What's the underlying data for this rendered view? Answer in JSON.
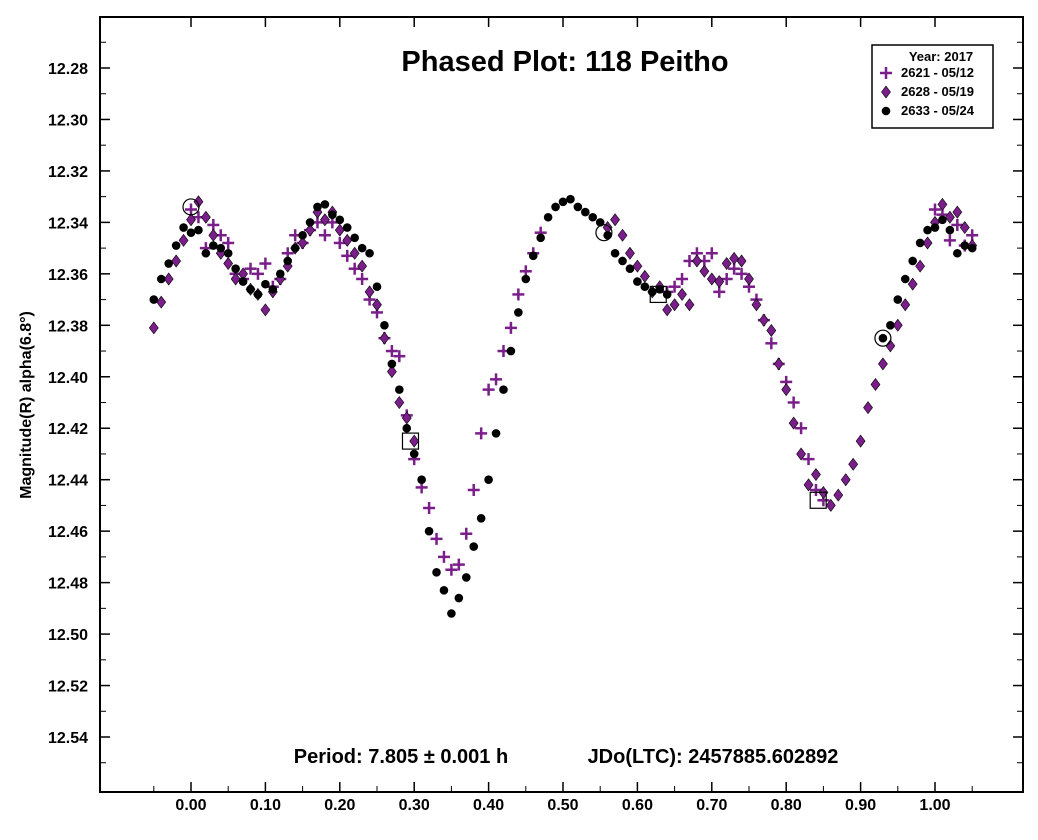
{
  "chart_data": {
    "type": "scatter",
    "title": "Phased Plot: 118 Peitho",
    "xlabel": "",
    "ylabel": "Magnitude(R) alpha(6.8°)",
    "xlim": [
      -0.12,
      1.12
    ],
    "ylim": [
      12.56,
      12.265
    ],
    "y_inverted": true,
    "grid": false,
    "xticks": [
      "0.00",
      "0.10",
      "0.20",
      "0.30",
      "0.40",
      "0.50",
      "0.60",
      "0.70",
      "0.80",
      "0.90",
      "1.00"
    ],
    "yticks": [
      "12.28",
      "12.30",
      "12.32",
      "12.34",
      "12.36",
      "12.38",
      "12.40",
      "12.42",
      "12.44",
      "12.46",
      "12.48",
      "12.50",
      "12.52",
      "12.54"
    ],
    "legend": {
      "title": "Year: 2017",
      "placement": "top-right",
      "entries": [
        "2621 - 05/12",
        "2628 - 05/19",
        "2633 - 05/24"
      ]
    },
    "annotation_left": "Period: 7.805 ± 0.001 h",
    "annotation_right": "JDo(LTC): 2457885.602892",
    "series": [
      {
        "name": "2621 - 05/12",
        "marker": "plus",
        "color": "#7a1e8a",
        "x": [
          0.0,
          0.01,
          0.02,
          0.03,
          0.04,
          0.05,
          0.06,
          0.07,
          0.08,
          0.09,
          0.1,
          0.11,
          0.12,
          0.13,
          0.14,
          0.15,
          0.16,
          0.17,
          0.18,
          0.19,
          0.2,
          0.21,
          0.22,
          0.23,
          0.24,
          0.25,
          0.26,
          0.27,
          0.28,
          0.29,
          0.3,
          0.31,
          0.32,
          0.33,
          0.34,
          0.35,
          0.36,
          0.37,
          0.38,
          0.39,
          0.4,
          0.41,
          0.42,
          0.43,
          0.44,
          0.45,
          0.46,
          0.47,
          0.64,
          0.65,
          0.66,
          0.67,
          0.68,
          0.69,
          0.7,
          0.71,
          0.72,
          0.73,
          0.74,
          0.75,
          0.76,
          0.77,
          0.78,
          0.79,
          0.8,
          0.81,
          0.82,
          0.83,
          0.84,
          0.85,
          1.0,
          1.01,
          1.02,
          1.03,
          1.04,
          1.05
        ],
        "y": [
          12.335,
          12.338,
          12.35,
          12.341,
          12.345,
          12.348,
          12.36,
          12.362,
          12.358,
          12.36,
          12.356,
          12.365,
          12.362,
          12.352,
          12.345,
          12.348,
          12.343,
          12.34,
          12.345,
          12.34,
          12.348,
          12.353,
          12.358,
          12.362,
          12.37,
          12.375,
          12.385,
          12.39,
          12.392,
          12.415,
          12.432,
          12.443,
          12.451,
          12.463,
          12.47,
          12.475,
          12.473,
          12.461,
          12.444,
          12.422,
          12.405,
          12.401,
          12.39,
          12.381,
          12.368,
          12.359,
          12.352,
          12.344,
          12.367,
          12.365,
          12.362,
          12.355,
          12.352,
          12.355,
          12.352,
          12.367,
          12.362,
          12.358,
          12.36,
          12.365,
          12.37,
          12.378,
          12.387,
          12.395,
          12.402,
          12.41,
          12.42,
          12.432,
          12.444,
          12.448,
          12.335,
          12.337,
          12.347,
          12.341,
          12.349,
          12.345
        ]
      },
      {
        "name": "2628 - 05/19",
        "marker": "diamond",
        "color": "#7a1e8a",
        "x": [
          -0.05,
          -0.04,
          -0.03,
          -0.02,
          -0.01,
          0.0,
          0.01,
          0.02,
          0.03,
          0.04,
          0.05,
          0.06,
          0.07,
          0.08,
          0.09,
          0.1,
          0.11,
          0.12,
          0.13,
          0.14,
          0.15,
          0.16,
          0.17,
          0.18,
          0.19,
          0.2,
          0.21,
          0.22,
          0.23,
          0.24,
          0.25,
          0.26,
          0.27,
          0.28,
          0.29,
          0.3,
          0.56,
          0.57,
          0.58,
          0.59,
          0.6,
          0.61,
          0.62,
          0.63,
          0.64,
          0.65,
          0.66,
          0.67,
          0.68,
          0.69,
          0.7,
          0.71,
          0.72,
          0.73,
          0.74,
          0.75,
          0.76,
          0.77,
          0.78,
          0.79,
          0.8,
          0.81,
          0.82,
          0.83,
          0.84,
          0.85,
          0.86,
          0.87,
          0.88,
          0.89,
          0.9,
          0.91,
          0.92,
          0.93,
          0.94,
          0.95,
          0.96,
          0.97,
          0.98,
          0.99,
          1.0,
          1.01,
          1.02,
          1.03,
          1.04,
          1.05
        ],
        "y": [
          12.381,
          12.371,
          12.362,
          12.355,
          12.347,
          12.339,
          12.332,
          12.338,
          12.345,
          12.352,
          12.356,
          12.362,
          12.36,
          12.366,
          12.368,
          12.374,
          12.367,
          12.362,
          12.357,
          12.35,
          12.348,
          12.343,
          12.336,
          12.339,
          12.336,
          12.343,
          12.347,
          12.352,
          12.357,
          12.367,
          12.372,
          12.385,
          12.398,
          12.41,
          12.416,
          12.425,
          12.342,
          12.339,
          12.345,
          12.352,
          12.357,
          12.361,
          12.367,
          12.365,
          12.374,
          12.372,
          12.368,
          12.372,
          12.355,
          12.359,
          12.362,
          12.363,
          12.356,
          12.354,
          12.355,
          12.362,
          12.372,
          12.378,
          12.382,
          12.395,
          12.405,
          12.418,
          12.43,
          12.442,
          12.438,
          12.445,
          12.45,
          12.446,
          12.44,
          12.434,
          12.425,
          12.412,
          12.403,
          12.395,
          12.388,
          12.38,
          12.372,
          12.364,
          12.357,
          12.348,
          12.34,
          12.333,
          12.338,
          12.336,
          12.342,
          12.349
        ]
      },
      {
        "name": "2633 - 05/24",
        "marker": "circle",
        "color": "#000000",
        "x": [
          -0.05,
          -0.04,
          -0.03,
          -0.02,
          -0.01,
          0.0,
          0.01,
          0.02,
          0.03,
          0.04,
          0.05,
          0.06,
          0.07,
          0.08,
          0.09,
          0.1,
          0.11,
          0.12,
          0.13,
          0.14,
          0.15,
          0.16,
          0.17,
          0.18,
          0.19,
          0.2,
          0.21,
          0.22,
          0.23,
          0.24,
          0.25,
          0.26,
          0.27,
          0.28,
          0.29,
          0.3,
          0.31,
          0.32,
          0.33,
          0.34,
          0.35,
          0.36,
          0.37,
          0.38,
          0.39,
          0.4,
          0.41,
          0.42,
          0.43,
          0.44,
          0.45,
          0.46,
          0.47,
          0.48,
          0.49,
          0.5,
          0.51,
          0.52,
          0.53,
          0.54,
          0.55,
          0.56,
          0.57,
          0.58,
          0.59,
          0.6,
          0.61,
          0.62,
          0.63,
          0.64,
          0.93,
          0.94,
          0.95,
          0.96,
          0.97,
          0.98,
          0.99,
          1.0,
          1.01,
          1.02,
          1.03,
          1.04,
          1.05
        ],
        "y": [
          12.37,
          12.362,
          12.356,
          12.349,
          12.342,
          12.344,
          12.343,
          12.352,
          12.349,
          12.35,
          12.352,
          12.358,
          12.363,
          12.366,
          12.368,
          12.364,
          12.366,
          12.36,
          12.355,
          12.35,
          12.345,
          12.34,
          12.334,
          12.333,
          12.337,
          12.339,
          12.342,
          12.346,
          12.35,
          12.352,
          12.365,
          12.38,
          12.395,
          12.405,
          12.42,
          12.43,
          12.44,
          12.46,
          12.476,
          12.483,
          12.492,
          12.486,
          12.478,
          12.466,
          12.455,
          12.44,
          12.422,
          12.405,
          12.39,
          12.375,
          12.362,
          12.353,
          12.346,
          12.338,
          12.334,
          12.332,
          12.331,
          12.334,
          12.336,
          12.338,
          12.34,
          12.345,
          12.352,
          12.355,
          12.358,
          12.363,
          12.365,
          12.367,
          12.366,
          12.368,
          12.385,
          12.38,
          12.37,
          12.362,
          12.355,
          12.348,
          12.343,
          12.342,
          12.339,
          12.343,
          12.352,
          12.349,
          12.35
        ]
      }
    ],
    "highlights": [
      {
        "x": 0.0,
        "y": 12.334,
        "shape": "circle"
      },
      {
        "x": 0.555,
        "y": 12.344,
        "shape": "circle"
      },
      {
        "x": 0.93,
        "y": 12.385,
        "shape": "circle"
      },
      {
        "x": 0.295,
        "y": 12.425,
        "shape": "square"
      },
      {
        "x": 0.628,
        "y": 12.368,
        "shape": "square"
      },
      {
        "x": 0.843,
        "y": 12.448,
        "shape": "square"
      }
    ]
  }
}
